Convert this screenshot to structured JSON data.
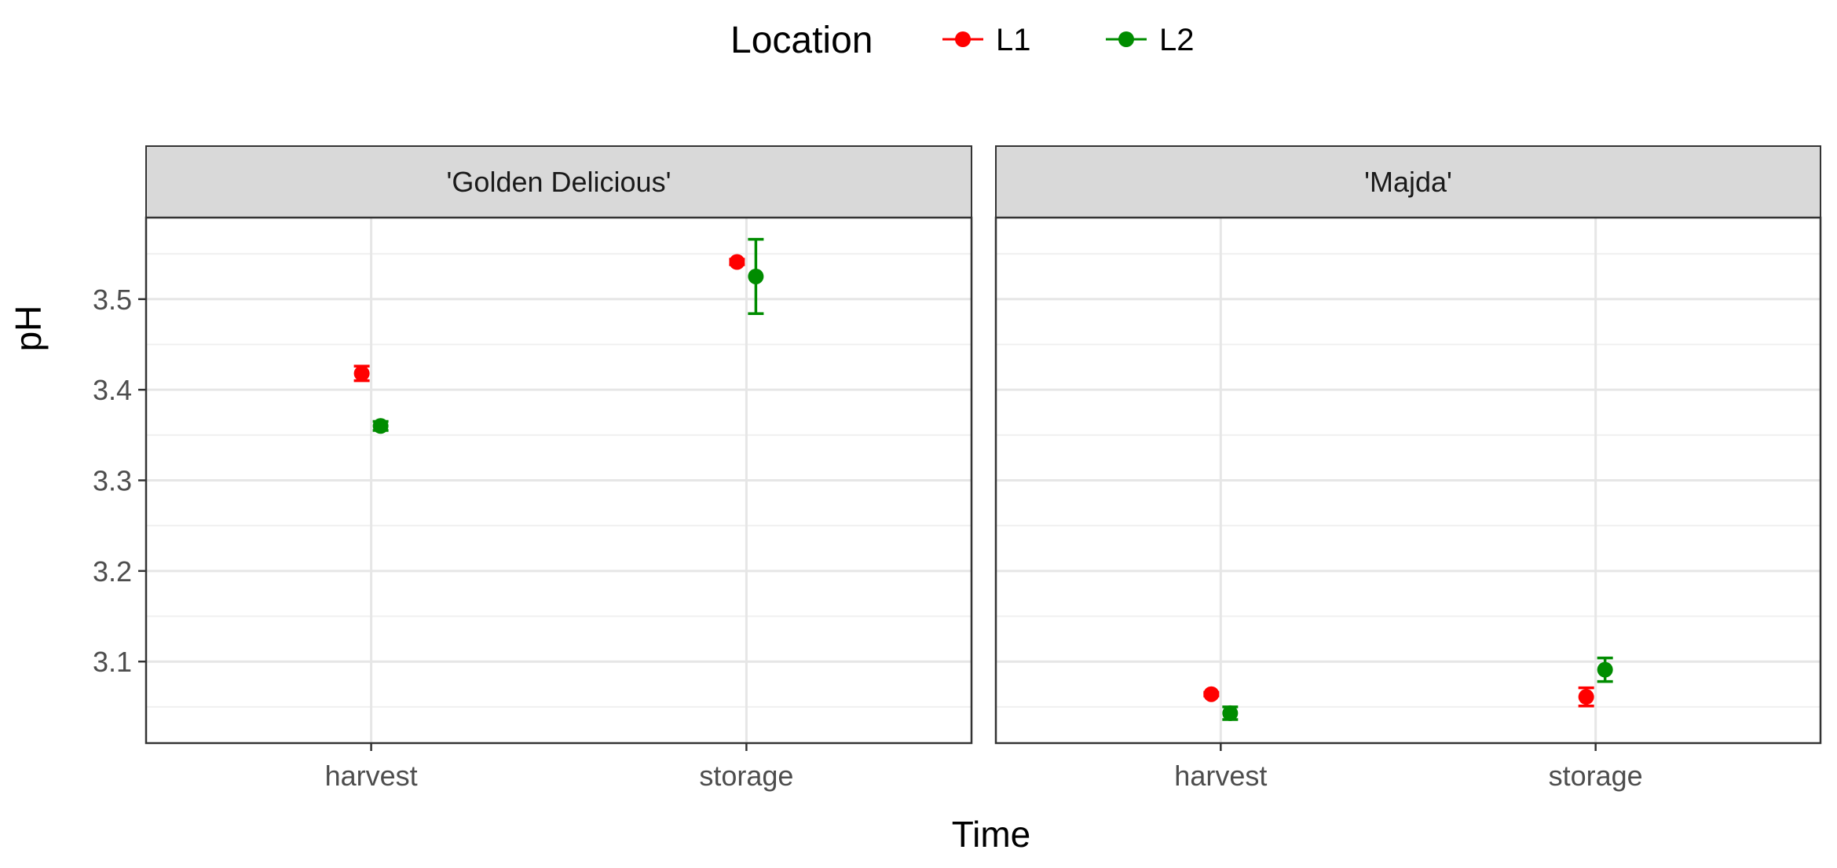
{
  "chart_data": {
    "type": "scatter",
    "legend": {
      "title": "Location",
      "position": "top",
      "entries": [
        {
          "name": "L1",
          "color": "#ff0000"
        },
        {
          "name": "L2",
          "color": "#008c00"
        }
      ]
    },
    "xlabel": "Time",
    "ylabel": "pH",
    "categories": [
      "harvest",
      "storage"
    ],
    "y_ticks": [
      "3.1",
      "3.2",
      "3.3",
      "3.4",
      "3.5"
    ],
    "ylim": [
      3.01,
      3.59
    ],
    "grid": true,
    "panels": [
      {
        "title": "'Golden Delicious'",
        "series": [
          {
            "name": "L1",
            "color": "#ff0000",
            "points": [
              {
                "x": "harvest",
                "y": 3.418,
                "ymin": 3.41,
                "ymax": 3.426
              },
              {
                "x": "storage",
                "y": 3.541,
                "ymin": 3.538,
                "ymax": 3.544
              }
            ]
          },
          {
            "name": "L2",
            "color": "#008c00",
            "points": [
              {
                "x": "harvest",
                "y": 3.36,
                "ymin": 3.355,
                "ymax": 3.365
              },
              {
                "x": "storage",
                "y": 3.525,
                "ymin": 3.484,
                "ymax": 3.566
              }
            ]
          }
        ]
      },
      {
        "title": "'Majda'",
        "series": [
          {
            "name": "L1",
            "color": "#ff0000",
            "points": [
              {
                "x": "harvest",
                "y": 3.064,
                "ymin": 3.062,
                "ymax": 3.066
              },
              {
                "x": "storage",
                "y": 3.061,
                "ymin": 3.051,
                "ymax": 3.071
              }
            ]
          },
          {
            "name": "L2",
            "color": "#008c00",
            "points": [
              {
                "x": "harvest",
                "y": 3.043,
                "ymin": 3.036,
                "ymax": 3.05
              },
              {
                "x": "storage",
                "y": 3.091,
                "ymin": 3.078,
                "ymax": 3.104
              }
            ]
          }
        ]
      }
    ]
  }
}
